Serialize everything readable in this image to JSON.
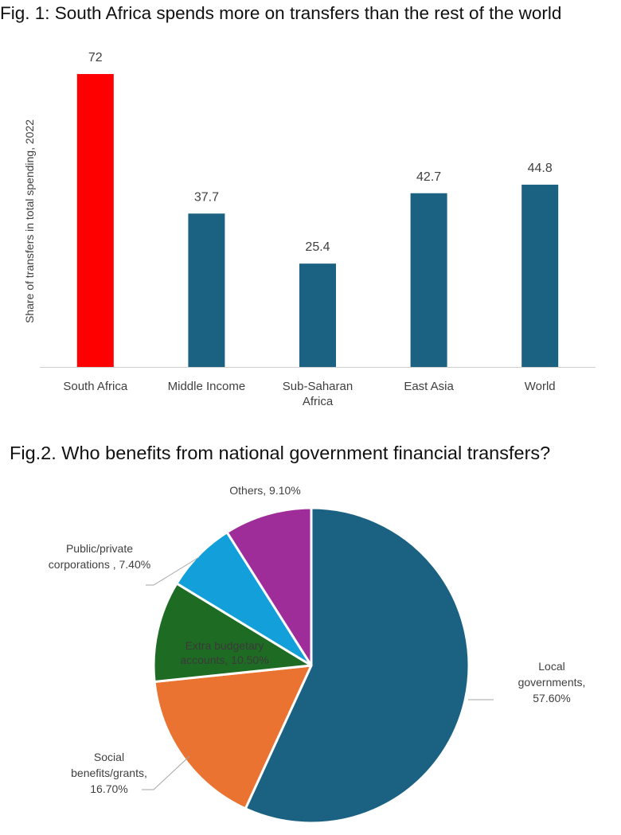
{
  "chart_data": [
    {
      "type": "bar",
      "title": "Fig. 1: South Africa spends more on transfers than the rest of the world",
      "categories": [
        "South Africa",
        "Middle Income",
        "Sub-Saharan Africa",
        "East Asia",
        "World"
      ],
      "category_lines": [
        [
          "South Africa"
        ],
        [
          "Middle Income"
        ],
        [
          "Sub-Saharan",
          "Africa"
        ],
        [
          "East Asia"
        ],
        [
          "World"
        ]
      ],
      "values": [
        72,
        37.7,
        25.4,
        42.7,
        44.8
      ],
      "value_labels": [
        "72",
        "37.7",
        "25.4",
        "42.7",
        "44.8"
      ],
      "colors": [
        "#ff0000",
        "#1b6182",
        "#1b6182",
        "#1b6182",
        "#1b6182"
      ],
      "xlabel": "",
      "ylabel": "Share of transfers in total spending, 2022",
      "ylim": [
        0,
        72
      ],
      "grid": false
    },
    {
      "type": "pie",
      "title": "Fig.2. Who benefits from national government financial transfers?",
      "labels": [
        "Local governments",
        "Social benefits/grants",
        "Extra budgetary accounts",
        "Public/private corporations",
        "Others"
      ],
      "values": [
        57.6,
        16.7,
        10.5,
        7.4,
        9.1
      ],
      "label_lines": [
        [
          "Local",
          "governments,",
          "57.60%"
        ],
        [
          "Social",
          "benefits/grants,",
          "16.70%"
        ],
        [
          "Extra budgetary",
          "accounts, 10.50%"
        ],
        [
          "Public/private",
          "corporations , 7.40%"
        ],
        [
          "Others, 9.10%"
        ]
      ],
      "colors": [
        "#1b6182",
        "#ea7331",
        "#1e6b23",
        "#139fd9",
        "#9e2d9a"
      ],
      "start_angle_deg": 0,
      "direction": "clockwise"
    }
  ]
}
